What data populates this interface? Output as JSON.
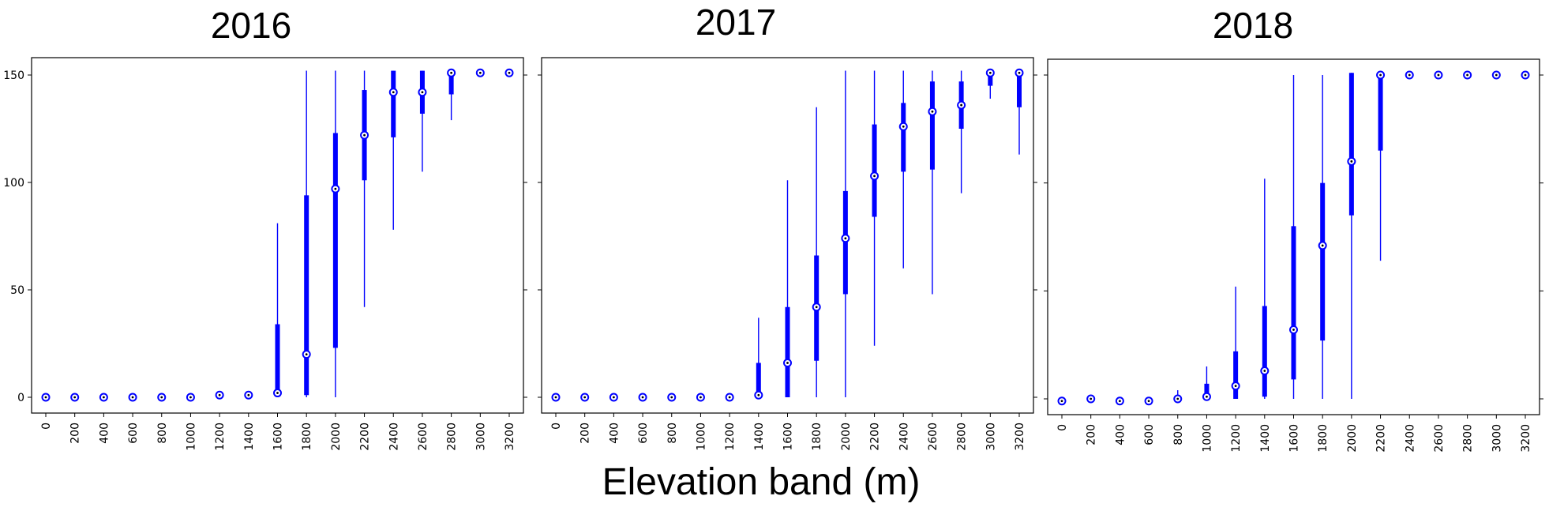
{
  "figure": {
    "xlabel": "Elevation band (m)"
  },
  "chart_data": [
    {
      "type": "box",
      "title": "2016",
      "xlabel": "Elevation band (m)",
      "ylabel": "",
      "ylim": [
        -8,
        158
      ],
      "yticks": [
        0,
        50,
        100,
        150
      ],
      "categories": [
        "0",
        "200",
        "400",
        "600",
        "800",
        "1000",
        "1200",
        "1400",
        "1600",
        "1800",
        "2000",
        "2200",
        "2400",
        "2600",
        "2800",
        "3000",
        "3200"
      ],
      "series": [
        {
          "color": "#0000ff",
          "median": [
            0,
            0,
            0,
            0,
            0,
            0,
            1,
            1,
            2,
            20,
            97,
            122,
            142,
            142,
            151,
            151,
            151
          ],
          "q1": [
            0,
            0,
            0,
            0,
            0,
            0,
            0,
            0,
            2,
            1,
            23,
            101,
            121,
            132,
            141,
            151,
            151
          ],
          "q3": [
            0,
            0,
            0,
            0,
            0,
            1,
            1,
            2,
            34,
            94,
            123,
            143,
            152,
            152,
            151,
            151,
            151
          ],
          "whislo": [
            0,
            0,
            0,
            0,
            0,
            0,
            0,
            0,
            0,
            0,
            0,
            42,
            78,
            105,
            129,
            151,
            151
          ],
          "whishi": [
            0,
            0,
            0,
            0,
            0,
            1,
            1,
            2,
            81,
            152,
            152,
            152,
            152,
            152,
            152,
            151,
            151
          ]
        }
      ]
    },
    {
      "type": "box",
      "title": "2017",
      "xlabel": "Elevation band (m)",
      "ylabel": "",
      "ylim": [
        -8,
        158
      ],
      "yticks": [
        0,
        50,
        100,
        150
      ],
      "categories": [
        "0",
        "200",
        "400",
        "600",
        "800",
        "1000",
        "1200",
        "1400",
        "1600",
        "1800",
        "2000",
        "2200",
        "2400",
        "2600",
        "2800",
        "3000",
        "3200"
      ],
      "series": [
        {
          "color": "#0000ff",
          "median": [
            0,
            0,
            0,
            0,
            0,
            0,
            0,
            1,
            16,
            42,
            74,
            103,
            126,
            133,
            136,
            151,
            151
          ],
          "q1": [
            0,
            0,
            0,
            0,
            0,
            0,
            0,
            0,
            0,
            17,
            48,
            84,
            105,
            106,
            125,
            145,
            135
          ],
          "q3": [
            0,
            0,
            0,
            0,
            1,
            1,
            1,
            16,
            42,
            66,
            96,
            127,
            137,
            147,
            147,
            152,
            152
          ],
          "whislo": [
            0,
            0,
            0,
            0,
            0,
            0,
            0,
            0,
            0,
            0,
            0,
            24,
            60,
            48,
            95,
            139,
            113
          ],
          "whishi": [
            0,
            0,
            0,
            0,
            1,
            1,
            1,
            37,
            101,
            135,
            152,
            152,
            152,
            152,
            152,
            152,
            152
          ]
        }
      ]
    },
    {
      "type": "box",
      "title": "2018",
      "xlabel": "Elevation band (m)",
      "ylabel": "",
      "ylim": [
        -8,
        158
      ],
      "yticks": [
        0,
        50,
        100,
        150
      ],
      "categories": [
        "0",
        "200",
        "400",
        "600",
        "800",
        "1000",
        "1200",
        "1400",
        "1600",
        "1800",
        "2000",
        "2200",
        "2400",
        "2600",
        "2800",
        "3000",
        "3200"
      ],
      "series": [
        {
          "color": "#0000ff",
          "median": [
            -1,
            0,
            -1,
            -1,
            0,
            1,
            6,
            13,
            32,
            71,
            110,
            150,
            150,
            150,
            150,
            150,
            150
          ],
          "q1": [
            -1,
            0,
            -1,
            -1,
            0,
            0,
            0,
            1,
            9,
            27,
            85,
            115,
            150,
            150,
            150,
            150,
            150
          ],
          "q3": [
            -1,
            0,
            0,
            0,
            1,
            7,
            22,
            43,
            80,
            100,
            151,
            151,
            150,
            150,
            150,
            150,
            150
          ],
          "whislo": [
            -1,
            0,
            -1,
            -1,
            0,
            0,
            0,
            0,
            0,
            0,
            0,
            64,
            150,
            150,
            150,
            150,
            150
          ],
          "whishi": [
            -1,
            0,
            0,
            0,
            4,
            15,
            52,
            102,
            150,
            150,
            151,
            151,
            150,
            150,
            150,
            150,
            150
          ]
        }
      ]
    }
  ]
}
